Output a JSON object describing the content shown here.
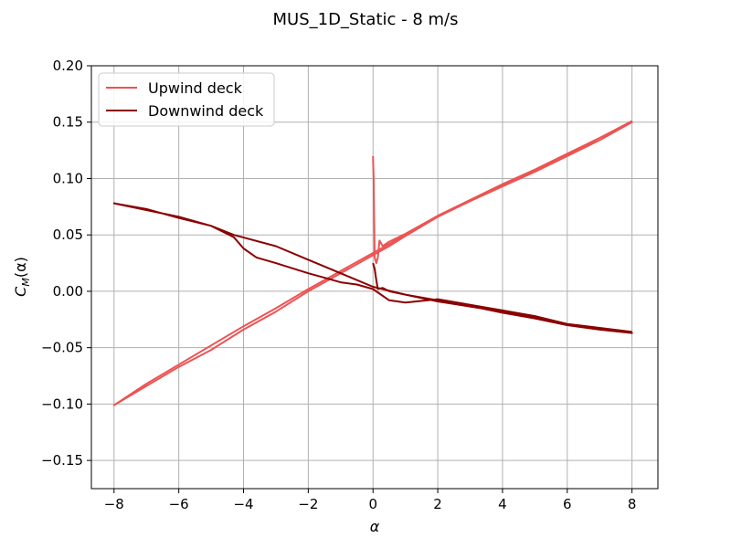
{
  "chart_data": {
    "type": "line",
    "title": "MUS_1D_Static - 8 m/s",
    "xlabel": "α",
    "ylabel": "C_M(α)",
    "xlim": [
      -8.7,
      8.8
    ],
    "ylim": [
      -0.175,
      0.2
    ],
    "xticks": [
      -8,
      -6,
      -4,
      -2,
      0,
      2,
      4,
      6,
      8
    ],
    "xtick_labels": [
      "−8",
      "−6",
      "−4",
      "−2",
      "0",
      "2",
      "4",
      "6",
      "8"
    ],
    "yticks": [
      -0.15,
      -0.1,
      -0.05,
      0.0,
      0.05,
      0.1,
      0.15,
      0.2
    ],
    "ytick_labels": [
      "−0.15",
      "−0.10",
      "−0.05",
      "0.00",
      "0.05",
      "0.10",
      "0.15",
      "0.20"
    ],
    "grid": true,
    "legend_position": "top-left",
    "series": [
      {
        "name": "Upwind deck",
        "color": "#ec5454",
        "points": [
          [
            0.0,
            0.12
          ],
          [
            0.02,
            0.1
          ],
          [
            0.05,
            0.03
          ],
          [
            0.1,
            0.025
          ],
          [
            0.15,
            0.03
          ],
          [
            0.2,
            0.045
          ],
          [
            0.3,
            0.04
          ],
          [
            0.5,
            0.044
          ],
          [
            1.0,
            0.051
          ],
          [
            2.0,
            0.067
          ],
          [
            3.0,
            0.081
          ],
          [
            4.0,
            0.095
          ],
          [
            5.0,
            0.108
          ],
          [
            6.0,
            0.122
          ],
          [
            7.0,
            0.136
          ],
          [
            8.0,
            0.15
          ],
          [
            7.0,
            0.134
          ],
          [
            6.0,
            0.12
          ],
          [
            5.0,
            0.106
          ],
          [
            4.0,
            0.093
          ],
          [
            3.0,
            0.08
          ],
          [
            2.0,
            0.066
          ],
          [
            1.0,
            0.049
          ],
          [
            0.5,
            0.04
          ],
          [
            0.0,
            0.032
          ],
          [
            -1.0,
            0.016
          ],
          [
            -2.0,
            0.0
          ],
          [
            -3.0,
            -0.018
          ],
          [
            -4.0,
            -0.034
          ],
          [
            -5.0,
            -0.052
          ],
          [
            -6.0,
            -0.067
          ],
          [
            -7.0,
            -0.084
          ],
          [
            -8.0,
            -0.101
          ],
          [
            -7.0,
            -0.082
          ],
          [
            -6.0,
            -0.065
          ],
          [
            -5.0,
            -0.048
          ],
          [
            -4.0,
            -0.031
          ],
          [
            -3.0,
            -0.015
          ],
          [
            -2.0,
            0.002
          ],
          [
            -1.0,
            0.018
          ],
          [
            0.0,
            0.034
          ],
          [
            1.0,
            0.05
          ],
          [
            2.0,
            0.067
          ],
          [
            4.0,
            0.094
          ],
          [
            6.0,
            0.121
          ],
          [
            8.0,
            0.151
          ]
        ]
      },
      {
        "name": "Downwind deck",
        "color": "#8b0000",
        "points": [
          [
            0.0,
            0.025
          ],
          [
            0.05,
            0.02
          ],
          [
            0.1,
            0.01
          ],
          [
            0.15,
            0.002
          ],
          [
            0.3,
            0.003
          ],
          [
            0.5,
            0.0
          ],
          [
            1.0,
            -0.003
          ],
          [
            2.0,
            -0.008
          ],
          [
            3.0,
            -0.013
          ],
          [
            4.0,
            -0.019
          ],
          [
            5.0,
            -0.024
          ],
          [
            6.0,
            -0.03
          ],
          [
            7.0,
            -0.034
          ],
          [
            8.0,
            -0.037
          ],
          [
            7.0,
            -0.033
          ],
          [
            6.0,
            -0.029
          ],
          [
            5.0,
            -0.022
          ],
          [
            4.0,
            -0.017
          ],
          [
            3.0,
            -0.012
          ],
          [
            2.0,
            -0.007
          ],
          [
            1.0,
            -0.01
          ],
          [
            0.5,
            -0.008
          ],
          [
            0.0,
            0.002
          ],
          [
            -0.5,
            0.006
          ],
          [
            -1.0,
            0.008
          ],
          [
            -1.5,
            0.012
          ],
          [
            -2.0,
            0.016
          ],
          [
            -3.0,
            0.025
          ],
          [
            -3.6,
            0.03
          ],
          [
            -4.0,
            0.038
          ],
          [
            -4.3,
            0.048
          ],
          [
            -5.0,
            0.058
          ],
          [
            -6.0,
            0.066
          ],
          [
            -7.0,
            0.072
          ],
          [
            -8.0,
            0.078
          ],
          [
            -7.0,
            0.073
          ],
          [
            -6.0,
            0.065
          ],
          [
            -5.0,
            0.058
          ],
          [
            -4.3,
            0.05
          ],
          [
            -3.0,
            0.04
          ],
          [
            -2.0,
            0.028
          ],
          [
            -1.0,
            0.016
          ],
          [
            0.0,
            0.004
          ],
          [
            1.0,
            -0.003
          ],
          [
            2.0,
            -0.009
          ],
          [
            4.0,
            -0.018
          ],
          [
            6.0,
            -0.029
          ],
          [
            8.0,
            -0.036
          ]
        ]
      }
    ]
  }
}
